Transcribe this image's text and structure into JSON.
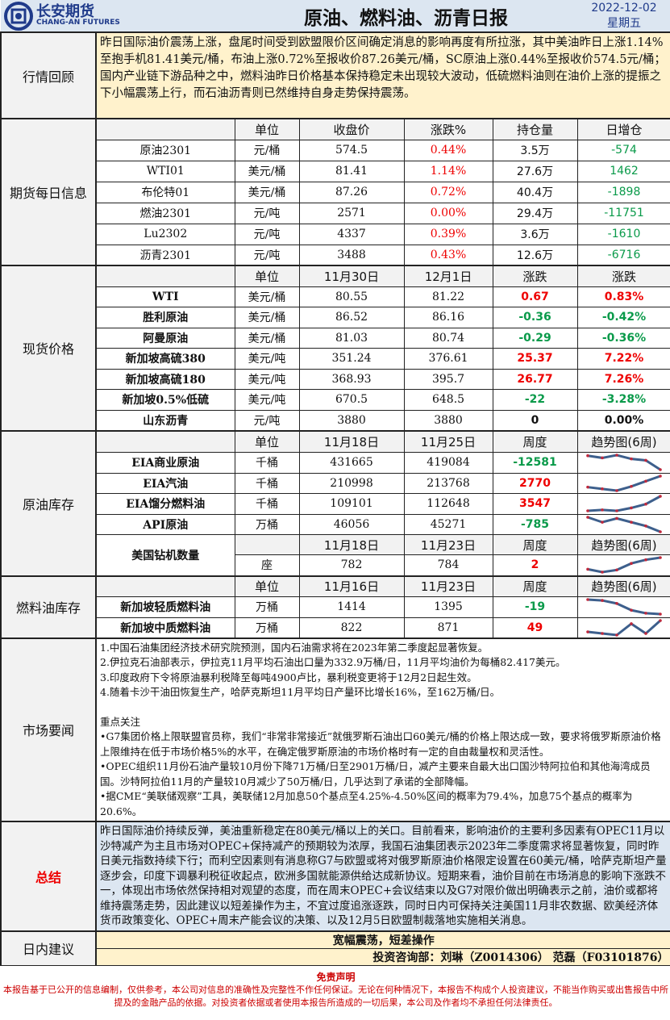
{
  "header": {
    "logo_cn": "长安期货",
    "logo_en": "CHANG-AN FUTURES",
    "title": "原油、燃料油、沥青日报",
    "date": "2022-12-02",
    "weekday": "星期五"
  },
  "review": {
    "label": "行情回顾",
    "text": "昨日国际油价震荡上涨，盘尾时间受到欧盟限价区间确定消息的影响再度有所拉涨，其中美油昨日上涨1.14%至抱手机81.41美元/桶，布油上涨0.72%至报收价87.26美元/桶，SC原油上涨0.44%至报收价574.5元/桶；国内产业链下游品种之中，燃料油昨日价格基本保持稳定未出现较大波动，低硫燃料油则在油价上涨的提振之下小幅震荡上行，而石油沥青则已然维持自身走势保持震荡。"
  },
  "futures": {
    "label": "期货每日信息",
    "columns": [
      "",
      "单位",
      "收盘价",
      "涨跌%",
      "持仓量",
      "日增仓"
    ],
    "rows": [
      [
        "原油2301",
        "元/桶",
        "574.5",
        "0.44%",
        "3.5万",
        "-574"
      ],
      [
        "WTI01",
        "美元/桶",
        "81.41",
        "1.14%",
        "27.6万",
        "1462"
      ],
      [
        "布伦特01",
        "美元/桶",
        "87.26",
        "0.72%",
        "40.4万",
        "-1898"
      ],
      [
        "燃油2301",
        "元/吨",
        "2571",
        "0.00%",
        "29.4万",
        "-11751"
      ],
      [
        "Lu2302",
        "元/吨",
        "4337",
        "0.39%",
        "3.6万",
        "-1610"
      ],
      [
        "沥青2301",
        "元/吨",
        "3488",
        "0.43%",
        "12.6万",
        "-6716"
      ]
    ]
  },
  "spot": {
    "label": "现货价格",
    "columns": [
      "",
      "单位",
      "11月30日",
      "12月1日",
      "涨跌",
      "涨跌"
    ],
    "rows": [
      [
        "WTI",
        "美元/桶",
        "80.55",
        "81.22",
        "0.67",
        "0.83%"
      ],
      [
        "胜利原油",
        "美元/桶",
        "86.52",
        "86.16",
        "-0.36",
        "-0.42%"
      ],
      [
        "阿曼原油",
        "美元/桶",
        "81.03",
        "80.74",
        "-0.29",
        "-0.36%"
      ],
      [
        "新加坡高硫380",
        "美元/吨",
        "351.24",
        "376.61",
        "25.37",
        "7.22%"
      ],
      [
        "新加坡高硫180",
        "美元/吨",
        "368.93",
        "395.7",
        "26.77",
        "7.26%"
      ],
      [
        "新加坡0.5%低硫",
        "美元/吨",
        "670.5",
        "648.5",
        "-22",
        "-3.28%"
      ],
      [
        "山东沥青",
        "元/吨",
        "3880",
        "3880",
        "0",
        "0.00%"
      ]
    ]
  },
  "crude_stock": {
    "label": "原油库存",
    "columns": [
      "",
      "单位",
      "11月18日",
      "11月25日",
      "周度",
      "趋势图(6周)"
    ],
    "rows": [
      {
        "cells": [
          "EIA商业原油",
          "千桶",
          "431665",
          "419084",
          "-12581"
        ],
        "trend": [
          0.96,
          0.81,
          1,
          0.74,
          0.64,
          0
        ]
      },
      {
        "cells": [
          "EIA汽油",
          "千桶",
          "210998",
          "213768",
          "2770"
        ],
        "trend": [
          0.24,
          0.12,
          0,
          0.29,
          0.65,
          1
        ]
      },
      {
        "cells": [
          "EIA馏分燃料油",
          "千桶",
          "109101",
          "112648",
          "3547"
        ],
        "trend": [
          0,
          0.06,
          0,
          0.2,
          0.46,
          1
        ]
      },
      {
        "cells": [
          "API原油",
          "万桶",
          "46056",
          "45271",
          "-785"
        ],
        "trend": [
          1,
          0.66,
          0.92,
          0.66,
          0.4,
          0
        ]
      }
    ],
    "rig": {
      "name": "美国钻机数量",
      "columns": [
        "",
        "11月18日",
        "11月23日",
        "周度",
        "趋势图(6周)"
      ],
      "cells": [
        "座",
        "782",
        "784",
        "2"
      ],
      "trend": [
        0.2,
        0,
        0.15,
        0.6,
        0.85,
        1
      ]
    }
  },
  "fuel_stock": {
    "label": "燃料油库存",
    "columns": [
      "",
      "单位",
      "11月16日",
      "11月23日",
      "周度",
      "趋势图(6周)"
    ],
    "rows": [
      {
        "cells": [
          "新加坡轻质燃料油",
          "万桶",
          "1414",
          "1395",
          "-19"
        ],
        "trend": [
          1,
          0.94,
          0.73,
          0.27,
          0.06,
          0
        ]
      },
      {
        "cells": [
          "新加坡中质燃料油",
          "万桶",
          "822",
          "871",
          "49"
        ],
        "trend": [
          0.22,
          0.11,
          0,
          0.78,
          0.11,
          1
        ]
      }
    ]
  },
  "news": {
    "label": "市场要闻",
    "items": [
      "1.中国石油集团经济技术研究院预测，国内石油需求将在2023年第二季度起显著恢复。",
      "2.伊拉克石油部表示，伊拉克11月平均石油出口量为332.9万桶/日，11月平均油价为每桶82.417美元。",
      "3.印度政府下令将原油暴利税降至每吨4900卢比，暴利税变更将于12月2日起生效。",
      "4.随着卡沙干油田恢复生产，哈萨克斯坦11月平均日产量环比增长16%，至162万桶/日。"
    ],
    "focus_title": "重点关注",
    "focus": [
      "•G7集团价格上限联盟官员称，我们“非常非常接近”就俄罗斯石油出口60美元/桶的价格上限达成一致，要求将俄罗斯原油价格上限维持在低于市场价格5%的水平，在确定俄罗斯原油的市场价格时有一定的自由裁量权和灵活性。",
      "•OPEC组织11月份石油产量较10月份下降71万桶/日至2901万桶/日，减产主要来自最大出口国沙特阿拉伯和其他海湾成员国。沙特阿拉伯11月的产量较10月减少了50万桶/日，几乎达到了承诺的全部降幅。",
      "•据CME“美联储观察”工具，美联储12月加息50个基点至4.25%-4.50%区间的概率为79.4%，加息75个基点的概率为20.6%。"
    ]
  },
  "summary": {
    "label": "总结",
    "text": "昨日国际油价持续反弹，美油重新稳定在80美元/桶以上的关口。目前看来，影响油价的主要利多因素有OPEC11月以沙特减产为主且市场对OPEC+保持减产的预期较为浓厚，我国石油集团表示2023年二季度需求将显著恢复，同时昨日美元指数持续下行；而利空因素则有消息称G7与欧盟或将对俄罗斯原油价格限定设置在60美元/桶，哈萨克斯坦产量逐步会，印度下调暴利税征收起点，欧洲多国就能源供给达成新协议。短期来看，油价目前在市场消息的影响下涨跌不一，体现出市场依然保持相对观望的态度，而在周末OPEC+会议结束以及G7对限价做出明确表示之前，油价或都将维持震荡走势，因此建议以短差操作为主，不宜过度追涨逐跌，同时日内可保持关注美国11月非农数据、欧美经济体货币政策变化、OPEC+周末产能会议的决策、以及12月5日欧盟制裁落地实施相关消息。"
  },
  "advice": {
    "label": "日内建议",
    "text": "宽幅震荡，短差操作",
    "author": "投资咨询部：刘琳（Z0014306） 范磊（F03101876）"
  },
  "disclaimer": {
    "title": "免责声明",
    "text": "本报告基于已公开的信息编制，仅供参考，本公司对信息的准确性及完整性不作任何保证。无论在何种情况下，本报告不构成个人投资建议，不能当作购买或出售报告中所提及的金融产品的依据。对投资者依据或者使用本报告所造成的一切后果，本公司及作者均不承担任何法律责任。"
  },
  "colors": {
    "header_bg": "#dce6f1",
    "review_bg": "#fff2cc",
    "summary_bg": "#dce6f1",
    "advice_bg": "#fff2cc",
    "up": "#ee0000",
    "down": "#0a9a4a",
    "trend_line": "#3d5f8c",
    "trend_dot": "#c0283c",
    "logo": "#1f3a8a"
  }
}
